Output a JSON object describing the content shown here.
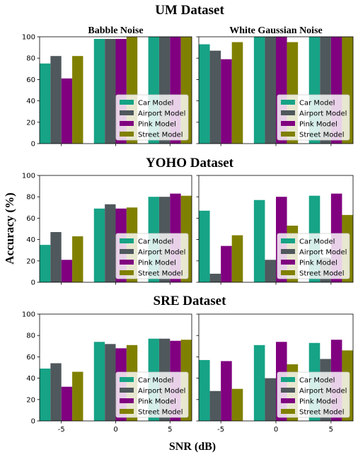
{
  "figure": {
    "ylabel": "Accuracy (%)",
    "xlabel": "SNR (dB)",
    "legend_location": "lower-right"
  },
  "colors": {
    "Car Model": "#16a386",
    "Airport Model": "#4f585c",
    "Pink Model": "#800080",
    "Street Model": "#808000"
  },
  "chart_data": [
    {
      "type": "bar",
      "group_title": "UM Dataset",
      "title": "Babble Noise",
      "categories": [
        "-5",
        "0",
        "5"
      ],
      "ylim": [
        0,
        100
      ],
      "yticks": [
        0,
        20,
        40,
        60,
        80,
        100
      ],
      "series": [
        {
          "name": "Car Model",
          "values": [
            75,
            98,
            100
          ]
        },
        {
          "name": "Airport Model",
          "values": [
            82,
            98,
            100
          ]
        },
        {
          "name": "Pink Model",
          "values": [
            61,
            98,
            100
          ]
        },
        {
          "name": "Street Model",
          "values": [
            82,
            100,
            100
          ]
        }
      ]
    },
    {
      "type": "bar",
      "group_title": "UM Dataset",
      "title": "White Gaussian Noise",
      "categories": [
        "-5",
        "0",
        "5"
      ],
      "ylim": [
        0,
        100
      ],
      "yticks": [
        0,
        20,
        40,
        60,
        80,
        100
      ],
      "series": [
        {
          "name": "Car Model",
          "values": [
            93,
            100,
            100
          ]
        },
        {
          "name": "Airport Model",
          "values": [
            87,
            100,
            100
          ]
        },
        {
          "name": "Pink Model",
          "values": [
            79,
            100,
            100
          ]
        },
        {
          "name": "Street Model",
          "values": [
            95,
            95,
            100
          ]
        }
      ]
    },
    {
      "type": "bar",
      "group_title": "YOHO Dataset",
      "title": "",
      "categories": [
        "-5",
        "0",
        "5"
      ],
      "ylim": [
        0,
        100
      ],
      "yticks": [
        0,
        20,
        40,
        60,
        80,
        100
      ],
      "series": [
        {
          "name": "Car Model",
          "values": [
            35,
            69,
            80
          ]
        },
        {
          "name": "Airport Model",
          "values": [
            47,
            73,
            80
          ]
        },
        {
          "name": "Pink Model",
          "values": [
            21,
            69,
            83
          ]
        },
        {
          "name": "Street Model",
          "values": [
            43,
            70,
            81
          ]
        }
      ]
    },
    {
      "type": "bar",
      "group_title": "YOHO Dataset",
      "title": "",
      "categories": [
        "-5",
        "0",
        "5"
      ],
      "ylim": [
        0,
        100
      ],
      "yticks": [
        0,
        20,
        40,
        60,
        80,
        100
      ],
      "series": [
        {
          "name": "Car Model",
          "values": [
            67,
            77,
            81
          ]
        },
        {
          "name": "Airport Model",
          "values": [
            8,
            21,
            23
          ]
        },
        {
          "name": "Pink Model",
          "values": [
            34,
            80,
            83
          ]
        },
        {
          "name": "Street Model",
          "values": [
            44,
            53,
            63
          ]
        }
      ]
    },
    {
      "type": "bar",
      "group_title": "SRE Dataset",
      "title": "",
      "categories": [
        "-5",
        "0",
        "5"
      ],
      "ylim": [
        0,
        100
      ],
      "yticks": [
        0,
        20,
        40,
        60,
        80,
        100
      ],
      "series": [
        {
          "name": "Car Model",
          "values": [
            49,
            74,
            77
          ]
        },
        {
          "name": "Airport Model",
          "values": [
            54,
            72,
            77
          ]
        },
        {
          "name": "Pink Model",
          "values": [
            32,
            68,
            75
          ]
        },
        {
          "name": "Street Model",
          "values": [
            46,
            71,
            76
          ]
        }
      ]
    },
    {
      "type": "bar",
      "group_title": "SRE Dataset",
      "title": "",
      "categories": [
        "-5",
        "0",
        "5"
      ],
      "ylim": [
        0,
        100
      ],
      "yticks": [
        0,
        20,
        40,
        60,
        80,
        100
      ],
      "series": [
        {
          "name": "Car Model",
          "values": [
            57,
            71,
            73
          ]
        },
        {
          "name": "Airport Model",
          "values": [
            28,
            40,
            58
          ]
        },
        {
          "name": "Pink Model",
          "values": [
            56,
            74,
            76
          ]
        },
        {
          "name": "Street Model",
          "values": [
            30,
            53,
            66
          ]
        }
      ]
    }
  ]
}
